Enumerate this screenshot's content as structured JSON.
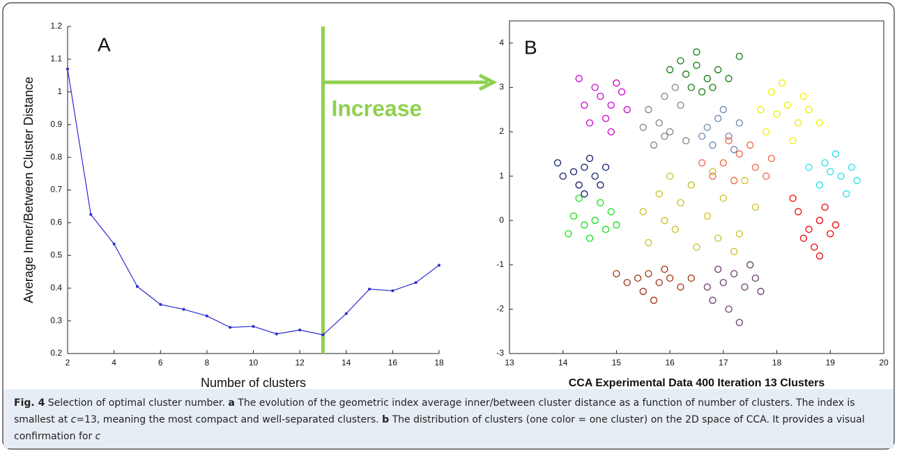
{
  "chart_data": [
    {
      "type": "line",
      "panel_label": "A",
      "xlabel": "Number of clusters",
      "ylabel": "Average Inner/Between Cluster Distance",
      "x": [
        2,
        3,
        4,
        5,
        6,
        7,
        8,
        9,
        10,
        11,
        12,
        13,
        14,
        15,
        16,
        17,
        18
      ],
      "series": [
        {
          "color": "#2a2ad0",
          "values": [
            1.07,
            0.625,
            0.535,
            0.405,
            0.35,
            0.335,
            0.315,
            0.28,
            0.283,
            0.26,
            0.272,
            0.257,
            0.322,
            0.397,
            0.392,
            0.417,
            0.47
          ]
        }
      ],
      "xlim": [
        2,
        18
      ],
      "xticks": [
        2,
        4,
        6,
        8,
        10,
        12,
        14,
        16,
        18
      ],
      "ylim": [
        0.2,
        1.2
      ],
      "yticks": [
        0.2,
        0.3,
        0.4,
        0.5,
        0.6,
        0.7,
        0.8,
        0.9,
        1,
        1.1,
        1.2
      ],
      "vline": 13,
      "annotation": "Increase",
      "annotation_color": "#8fd14f"
    },
    {
      "type": "scatter",
      "panel_label": "B",
      "title": "CCA Experimental Data 400 Iteration 13 Clusters",
      "xlim": [
        13,
        20
      ],
      "xticks": [
        13,
        14,
        15,
        16,
        17,
        18,
        19,
        20
      ],
      "ylim": [
        -3,
        4.5
      ],
      "yticks": [
        -3,
        -2,
        -1,
        0,
        1,
        2,
        3,
        4
      ],
      "series": [
        {
          "color": "#0a7a0a",
          "x": [
            16.3,
            16.5,
            16.7,
            16.9,
            16.4,
            16.6,
            16.8,
            16.2,
            17.1,
            16.5,
            16.0,
            17.3
          ],
          "y": [
            3.3,
            3.5,
            3.2,
            3.4,
            3.0,
            2.9,
            3.0,
            3.6,
            3.2,
            3.8,
            3.4,
            3.7
          ]
        },
        {
          "color": "#cc00cc",
          "x": [
            14.7,
            14.9,
            15.1,
            14.8,
            15.0,
            14.6,
            14.4,
            15.2,
            14.9,
            14.5,
            14.3
          ],
          "y": [
            2.8,
            2.6,
            2.9,
            2.3,
            3.1,
            3.0,
            2.6,
            2.5,
            2.0,
            2.2,
            3.2
          ]
        },
        {
          "color": "#808080",
          "x": [
            15.6,
            15.8,
            16.0,
            16.2,
            15.7,
            15.9,
            16.1,
            15.5,
            16.3,
            15.9
          ],
          "y": [
            2.5,
            2.2,
            2.0,
            2.6,
            1.7,
            1.9,
            3.0,
            2.1,
            1.8,
            2.8
          ]
        },
        {
          "color": "#6a85b0",
          "x": [
            16.7,
            16.9,
            17.1,
            17.3,
            16.8,
            17.0,
            17.2,
            16.6
          ],
          "y": [
            2.1,
            2.3,
            1.9,
            2.2,
            1.7,
            2.5,
            1.6,
            1.9
          ]
        },
        {
          "color": "#f0f000",
          "x": [
            18.0,
            18.2,
            18.4,
            17.8,
            17.9,
            18.1,
            18.6,
            18.3,
            17.7,
            18.5,
            18.8
          ],
          "y": [
            2.4,
            2.6,
            2.2,
            2.0,
            2.9,
            3.1,
            2.5,
            1.8,
            2.5,
            2.8,
            2.2
          ]
        },
        {
          "color": "#0a1a6a",
          "x": [
            14.2,
            14.4,
            14.6,
            14.8,
            14.3,
            14.5,
            14.0,
            14.7,
            13.9,
            14.4
          ],
          "y": [
            1.1,
            1.2,
            1.0,
            1.2,
            0.8,
            1.4,
            1.0,
            0.8,
            1.3,
            0.6
          ]
        },
        {
          "color": "#f06040",
          "x": [
            17.0,
            17.3,
            17.6,
            17.9,
            16.8,
            17.2,
            17.5,
            16.6,
            17.8,
            17.1
          ],
          "y": [
            1.3,
            1.5,
            1.2,
            1.4,
            1.0,
            0.9,
            1.7,
            1.3,
            1.0,
            1.8
          ]
        },
        {
          "color": "#20e0e8",
          "x": [
            19.0,
            19.2,
            19.4,
            18.8,
            19.1,
            18.9,
            19.5,
            19.3,
            18.6
          ],
          "y": [
            1.1,
            1.0,
            1.2,
            0.8,
            1.5,
            1.3,
            0.9,
            0.6,
            1.2
          ]
        },
        {
          "color": "#10e010",
          "x": [
            14.4,
            14.6,
            14.8,
            14.2,
            14.5,
            14.9,
            14.1,
            14.7,
            14.3,
            15.0
          ],
          "y": [
            -0.1,
            0.0,
            -0.2,
            0.1,
            -0.4,
            0.2,
            -0.3,
            0.4,
            0.5,
            -0.1
          ]
        },
        {
          "color": "#c8c020",
          "x": [
            15.5,
            15.8,
            16.1,
            16.4,
            16.7,
            17.0,
            17.3,
            17.6,
            15.6,
            16.0,
            16.5,
            16.9,
            17.4,
            15.9,
            16.2,
            16.8,
            17.2
          ],
          "y": [
            0.2,
            0.6,
            -0.2,
            0.8,
            0.1,
            0.5,
            -0.3,
            0.3,
            -0.5,
            1.0,
            -0.6,
            -0.4,
            0.9,
            0.0,
            0.4,
            1.1,
            -0.7
          ]
        },
        {
          "color": "#ee0000",
          "x": [
            18.6,
            18.8,
            19.0,
            18.4,
            18.7,
            18.9,
            18.5,
            18.3,
            18.8,
            19.1
          ],
          "y": [
            -0.2,
            0.0,
            -0.3,
            0.2,
            -0.6,
            0.3,
            -0.4,
            0.5,
            -0.8,
            -0.1
          ]
        },
        {
          "color": "#a03010",
          "x": [
            15.4,
            15.6,
            15.8,
            16.0,
            15.2,
            15.5,
            15.9,
            16.2,
            15.0,
            15.7,
            16.4
          ],
          "y": [
            -1.3,
            -1.2,
            -1.4,
            -1.3,
            -1.4,
            -1.6,
            -1.1,
            -1.5,
            -1.2,
            -1.8,
            -1.3
          ]
        },
        {
          "color": "#6a3a6a",
          "x": [
            17.0,
            17.2,
            17.4,
            17.6,
            16.8,
            17.1,
            17.5,
            16.9,
            17.3,
            16.7,
            17.7
          ],
          "y": [
            -1.4,
            -1.2,
            -1.5,
            -1.3,
            -1.8,
            -2.0,
            -1.0,
            -1.1,
            -2.3,
            -1.5,
            -1.6
          ]
        }
      ]
    }
  ],
  "caption": [
    {
      "text": "Fig. 4",
      "style": "bold"
    },
    {
      "text": " Selection of optimal cluster number. ",
      "style": "normal"
    },
    {
      "text": "a",
      "style": "bold"
    },
    {
      "text": " The evolution of the geometric index average inner/between cluster distance as a function of number of clusters. The index is smallest at ",
      "style": "normal"
    },
    {
      "text": "c",
      "style": "italic"
    },
    {
      "text": "=13, meaning the most compact and well-separated clusters. ",
      "style": "normal"
    },
    {
      "text": "b",
      "style": "bold"
    },
    {
      "text": " The distribution of clusters (one color = one cluster) on the 2D space of CCA. It provides a visual confirmation for ",
      "style": "normal"
    },
    {
      "text": "c",
      "style": "italic"
    }
  ]
}
